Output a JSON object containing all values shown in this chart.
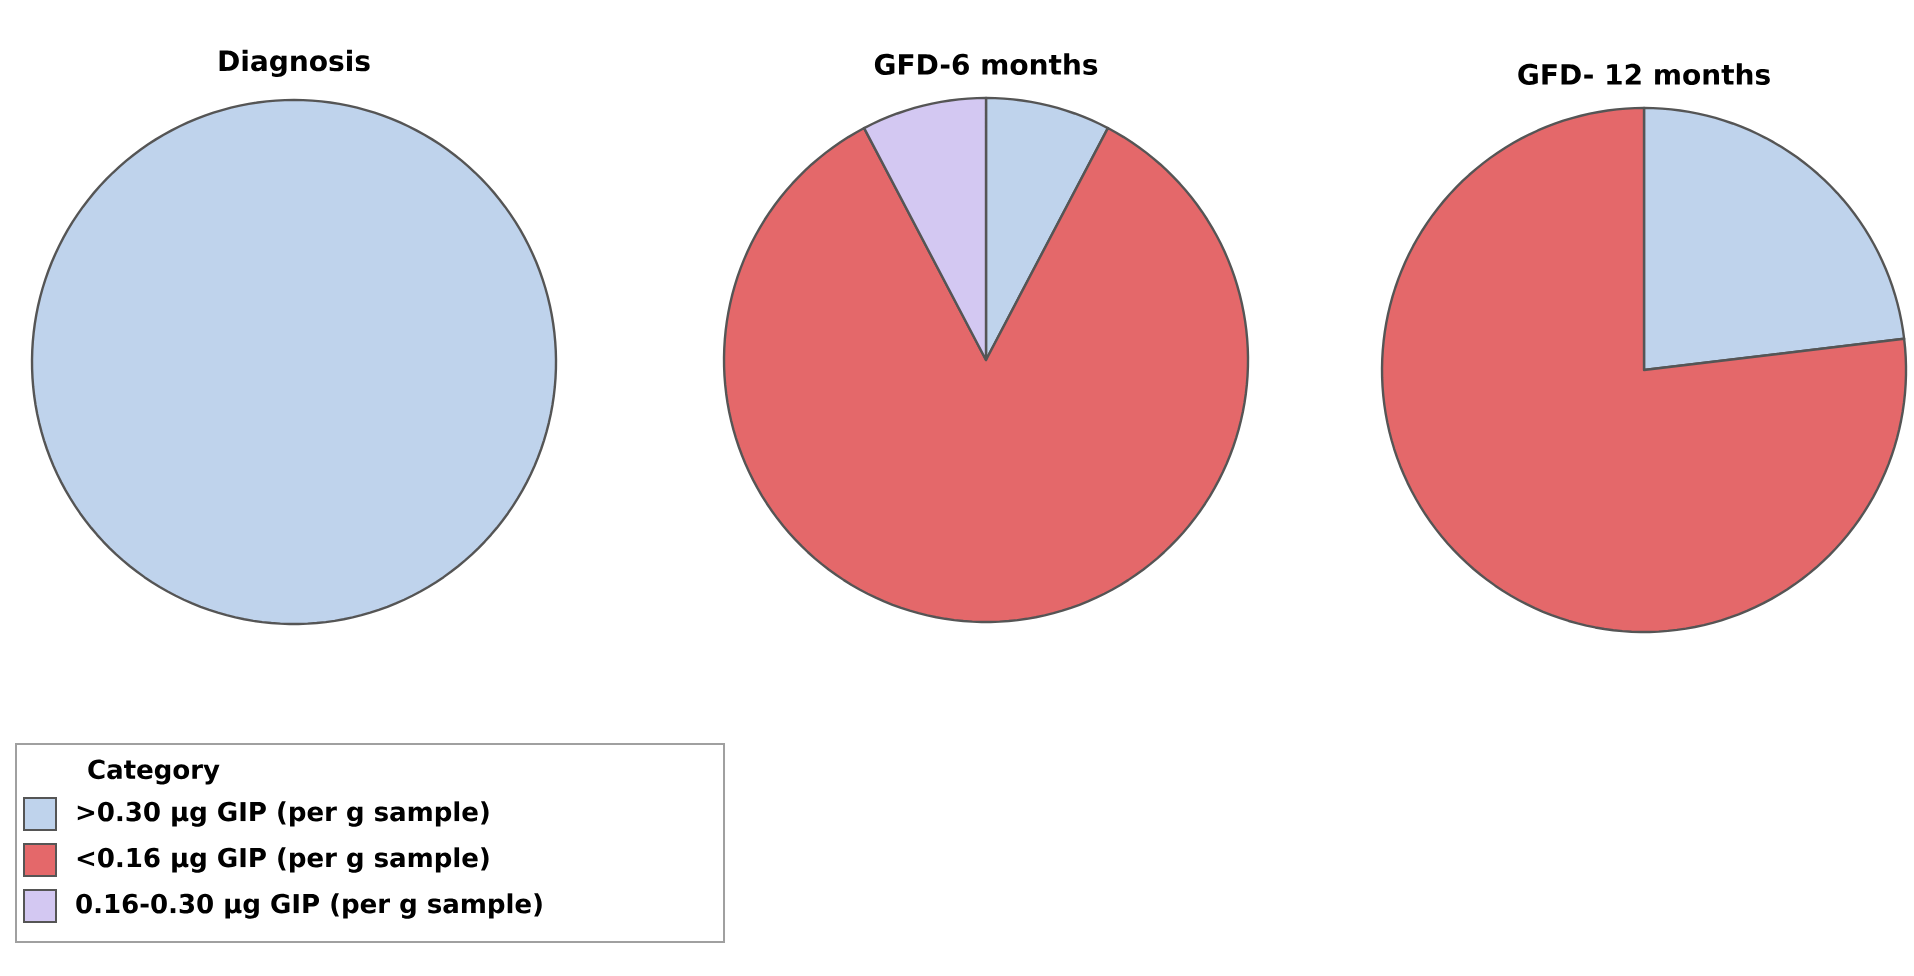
{
  "chart_data": [
    {
      "type": "pie",
      "title": "Diagnosis",
      "categories": [
        ">0.30 µg GIP (per g sample)",
        "<0.16 µg GIP (per g sample)",
        "0.16-0.30 µg GIP (per g sample)"
      ],
      "values": [
        100,
        0,
        0
      ],
      "colors": [
        "#bfd3ec",
        "#e4686a",
        "#d3c8f2"
      ],
      "legend": "bottom left",
      "legend_title": "Category"
    },
    {
      "type": "pie",
      "title": "GFD-6 months",
      "values": [
        7.7,
        84.6,
        7.7
      ],
      "colors": [
        "#bfd3ec",
        "#e4686a",
        "#d3c8f2"
      ]
    },
    {
      "type": "pie",
      "title": "GFD- 12 months",
      "values": [
        23.1,
        76.9,
        0
      ],
      "colors": [
        "#bfd3ec",
        "#e4686a",
        "#d3c8f2"
      ]
    }
  ]
}
